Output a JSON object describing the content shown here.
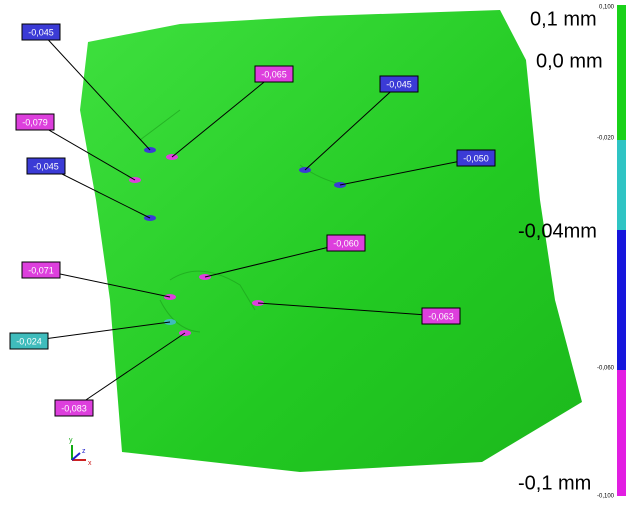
{
  "scale": {
    "labels": [
      "0,1 mm",
      "0,0 mm",
      "-0,04mm",
      "-0,1 mm"
    ],
    "ticks": [
      "0,100",
      "-0,020",
      "-0,060",
      "-0,100"
    ],
    "colors": [
      "#19d219",
      "#2fc4c4",
      "#1616dc",
      "#e21ee2"
    ]
  },
  "callouts": [
    {
      "label": "-0,045",
      "color": "#3b3bd6"
    },
    {
      "label": "-0,065",
      "color": "#dd3fdd"
    },
    {
      "label": "-0,045",
      "color": "#3b3bd6"
    },
    {
      "label": "-0,079",
      "color": "#dd3fdd"
    },
    {
      "label": "-0,045",
      "color": "#3b3bd6"
    },
    {
      "label": "-0,050",
      "color": "#3b3bd6"
    },
    {
      "label": "-0,060",
      "color": "#dd3fdd"
    },
    {
      "label": "-0,071",
      "color": "#dd3fdd"
    },
    {
      "label": "-0,063",
      "color": "#dd3fdd"
    },
    {
      "label": "-0,024",
      "color": "#3fbcbc"
    },
    {
      "label": "-0,083",
      "color": "#dd3fdd"
    }
  ],
  "axes": {
    "y": "y",
    "z": "z",
    "x": "x"
  }
}
